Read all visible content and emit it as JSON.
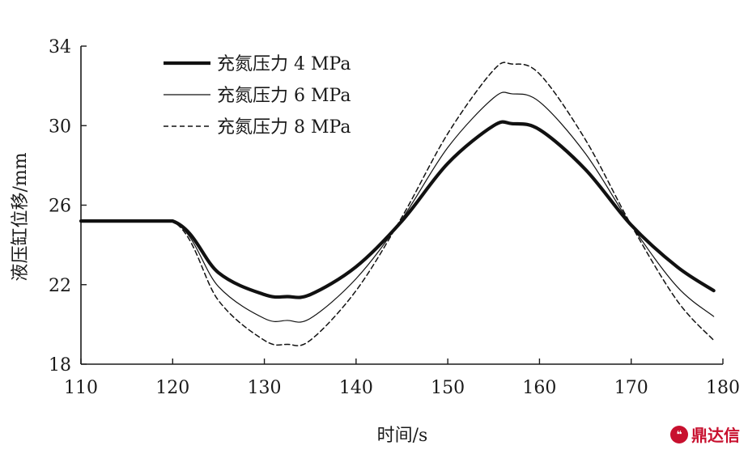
{
  "chart_data": {
    "type": "line",
    "title": "",
    "xlabel": "时间/s",
    "ylabel": "液压缸位移/mm",
    "xlim": [
      110,
      180
    ],
    "ylim": [
      18,
      34
    ],
    "xticks": [
      "110",
      "120",
      "130",
      "140",
      "150",
      "160",
      "170",
      "180"
    ],
    "yticks": [
      "18",
      "22",
      "26",
      "30",
      "34"
    ],
    "grid": false,
    "legend": "top-left",
    "x": [
      110,
      120,
      125,
      130,
      132.5,
      135,
      140,
      145,
      150,
      155,
      157,
      160,
      165,
      170,
      175,
      179
    ],
    "series": [
      {
        "name": "充氮压力 4 MPa",
        "style": "thick-solid",
        "values": [
          25.2,
          25.2,
          22.6,
          21.5,
          21.4,
          21.5,
          22.9,
          25.2,
          28.1,
          30.0,
          30.1,
          29.8,
          27.8,
          25.0,
          22.9,
          21.7
        ]
      },
      {
        "name": "充氮压力 6 MPa",
        "style": "thin-solid",
        "values": [
          25.2,
          25.2,
          21.9,
          20.3,
          20.2,
          20.3,
          22.3,
          25.3,
          28.9,
          31.4,
          31.6,
          31.2,
          28.6,
          25.0,
          21.9,
          20.4
        ]
      },
      {
        "name": "充氮压力 8 MPa",
        "style": "dashed",
        "values": [
          25.2,
          25.2,
          21.2,
          19.2,
          19.0,
          19.2,
          21.7,
          25.4,
          29.6,
          32.8,
          33.1,
          32.6,
          29.3,
          25.0,
          21.2,
          19.2
        ]
      }
    ]
  },
  "watermark": {
    "text": "鼎达信",
    "icon": "chat-bubble-icon"
  }
}
